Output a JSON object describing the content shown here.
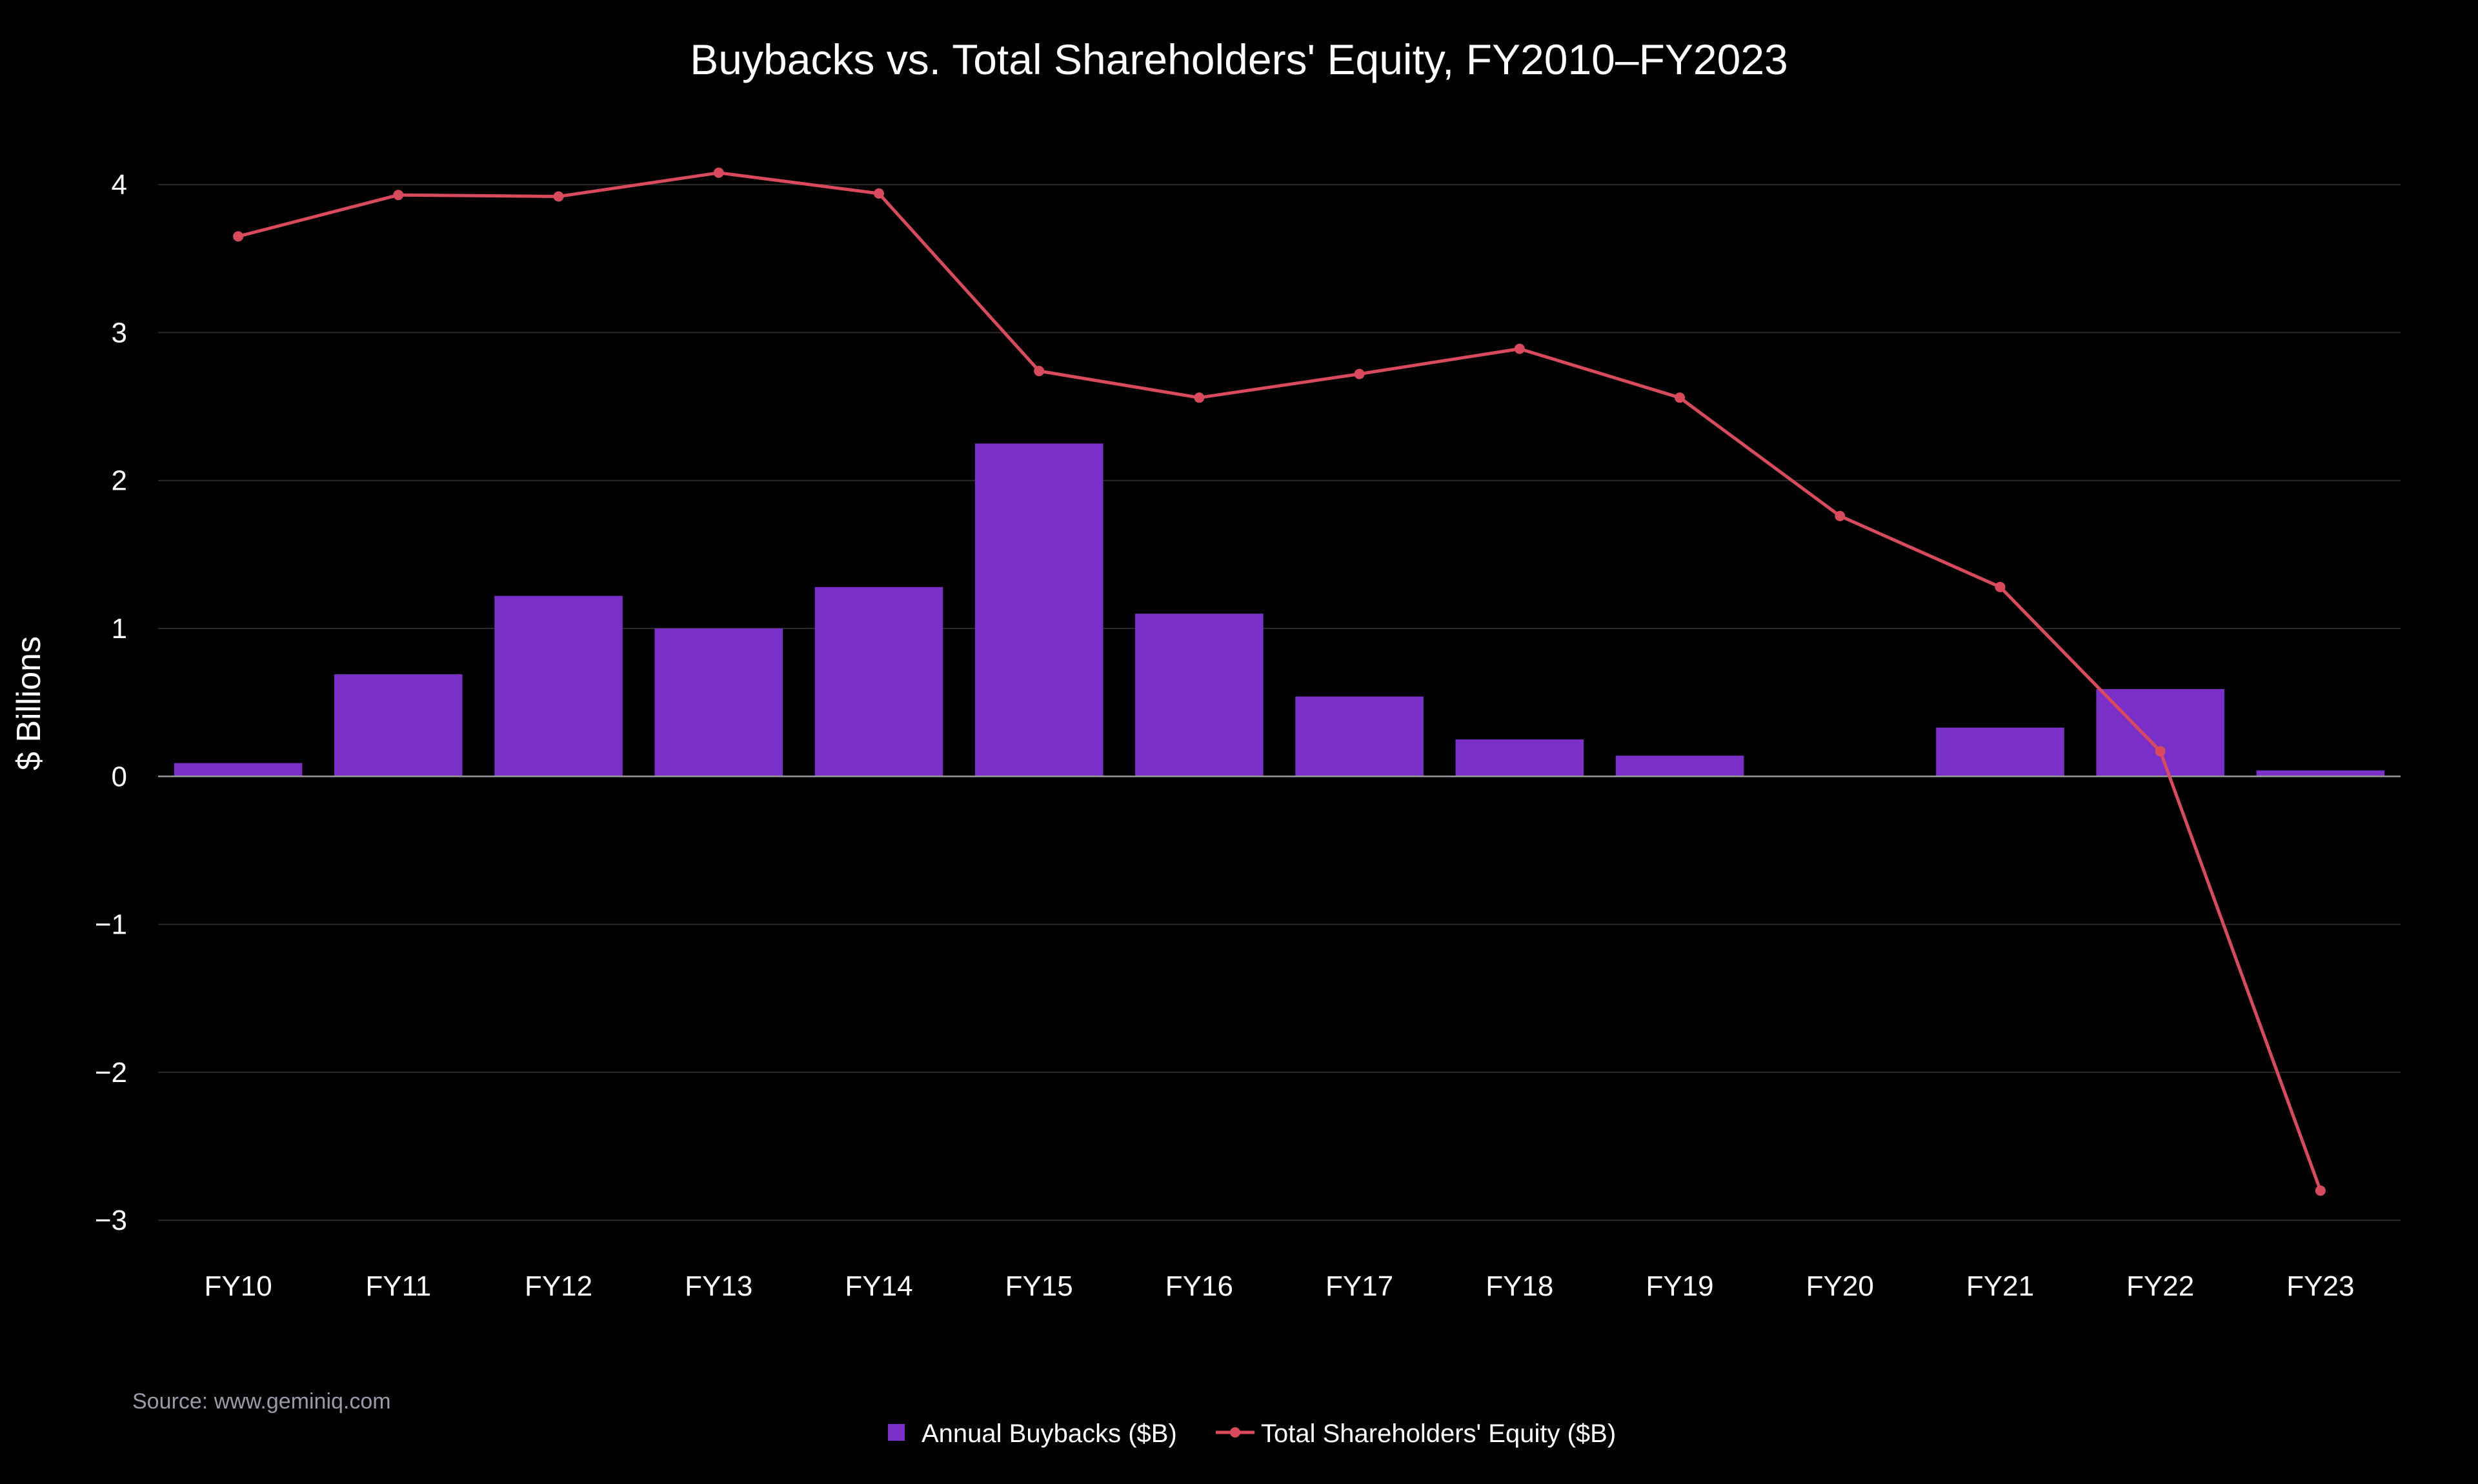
{
  "chart_data": {
    "type": "bar",
    "title": "Buybacks vs. Total Shareholders' Equity, FY2010–FY2023",
    "xlabel": "",
    "ylabel": "$ Billions",
    "categories": [
      "FY10",
      "FY11",
      "FY12",
      "FY13",
      "FY14",
      "FY15",
      "FY16",
      "FY17",
      "FY18",
      "FY19",
      "FY20",
      "FY21",
      "FY22",
      "FY23"
    ],
    "ylim": [
      -3.3,
      4.55
    ],
    "yticks": [
      4,
      3,
      2,
      1,
      0,
      -1,
      -2,
      -3
    ],
    "ytick_labels": [
      "4",
      "3",
      "2",
      "1",
      "0",
      "−1",
      "−2",
      "−3"
    ],
    "grid": true,
    "legend_position": "bottom-center",
    "series": [
      {
        "name": "Annual Buybacks ($B)",
        "type": "bar",
        "color": "#7b2fc9",
        "values": [
          0.09,
          0.69,
          1.22,
          1.0,
          1.28,
          2.25,
          1.1,
          0.54,
          0.25,
          0.14,
          0.0,
          0.33,
          0.59,
          0.04
        ]
      },
      {
        "name": "Total Shareholders' Equity ($B)",
        "type": "line",
        "color": "#d94a5c",
        "values": [
          3.65,
          3.93,
          3.92,
          4.08,
          3.94,
          2.74,
          2.56,
          2.72,
          2.89,
          2.56,
          1.76,
          1.28,
          0.17,
          -2.8
        ]
      }
    ]
  },
  "source": "Source: www.geminiq.com",
  "colors": {
    "background": "#000000",
    "grid": "#2a2a2a",
    "zero_line": "#9a9a9a"
  }
}
